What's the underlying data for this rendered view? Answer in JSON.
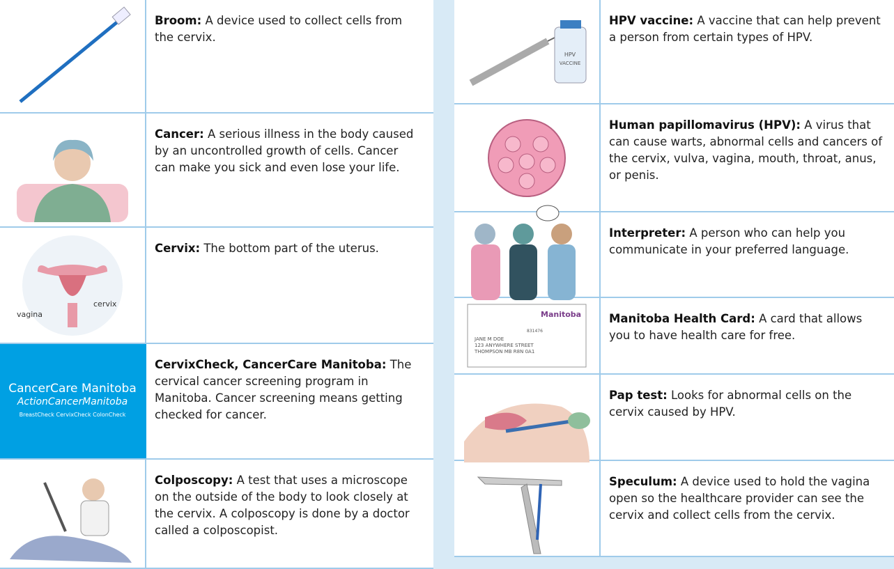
{
  "left": {
    "entries": [
      {
        "term": "Broom:",
        "definition": "A device used to collect cells from the cervix."
      },
      {
        "term": "Cancer:",
        "definition": "A serious illness in the body caused by an uncontrolled growth of cells. Cancer can make you sick and even lose your life."
      },
      {
        "term": "Cervix:",
        "definition": "The bottom part of the uterus.",
        "image_labels": [
          "vagina",
          "cervix"
        ]
      },
      {
        "term": "CervixCheck, CancerCare Manitoba:",
        "definition": "The cervical cancer screening program in Manitoba. Cancer screening means getting checked for cancer.",
        "image_labels": [
          "CancerCare Manitoba",
          "ActionCancerManitoba",
          "BreastCheck CervixCheck ColonCheck"
        ]
      },
      {
        "term": "Colposcopy:",
        "definition": "A test that uses a microscope on the outside of the body to look closely at the cervix. A colposcopy is done by a doctor called a colposcopist."
      }
    ]
  },
  "right": {
    "entries": [
      {
        "term": "HPV vaccine:",
        "definition": "A vaccine that can help prevent a person from certain types of HPV.",
        "image_labels": [
          "HPV",
          "VACCINE"
        ]
      },
      {
        "term": "Human papillomavirus (HPV):",
        "definition": "A virus that can cause warts, abnormal cells and cancers of the cervix, vulva, vagina, mouth, throat, anus, or penis."
      },
      {
        "term": "Interpreter:",
        "definition": "A person who can help you communicate in your preferred language."
      },
      {
        "term": "Manitoba Health Card:",
        "definition": "A card that allows you to have health care for free.",
        "image_labels": [
          "Manitoba",
          "831476",
          "JANE M DOE",
          "123 ANYWHERE STREET",
          "THOMPSON MB R8N 0A1"
        ]
      },
      {
        "term": "Pap test:",
        "definition": "Looks for abnormal cells on the cervix caused by HPV."
      },
      {
        "term": "Speculum:",
        "definition": "A device used to hold the vagina open so the healthcare provider can see the cervix and collect cells from the cervix."
      }
    ]
  }
}
